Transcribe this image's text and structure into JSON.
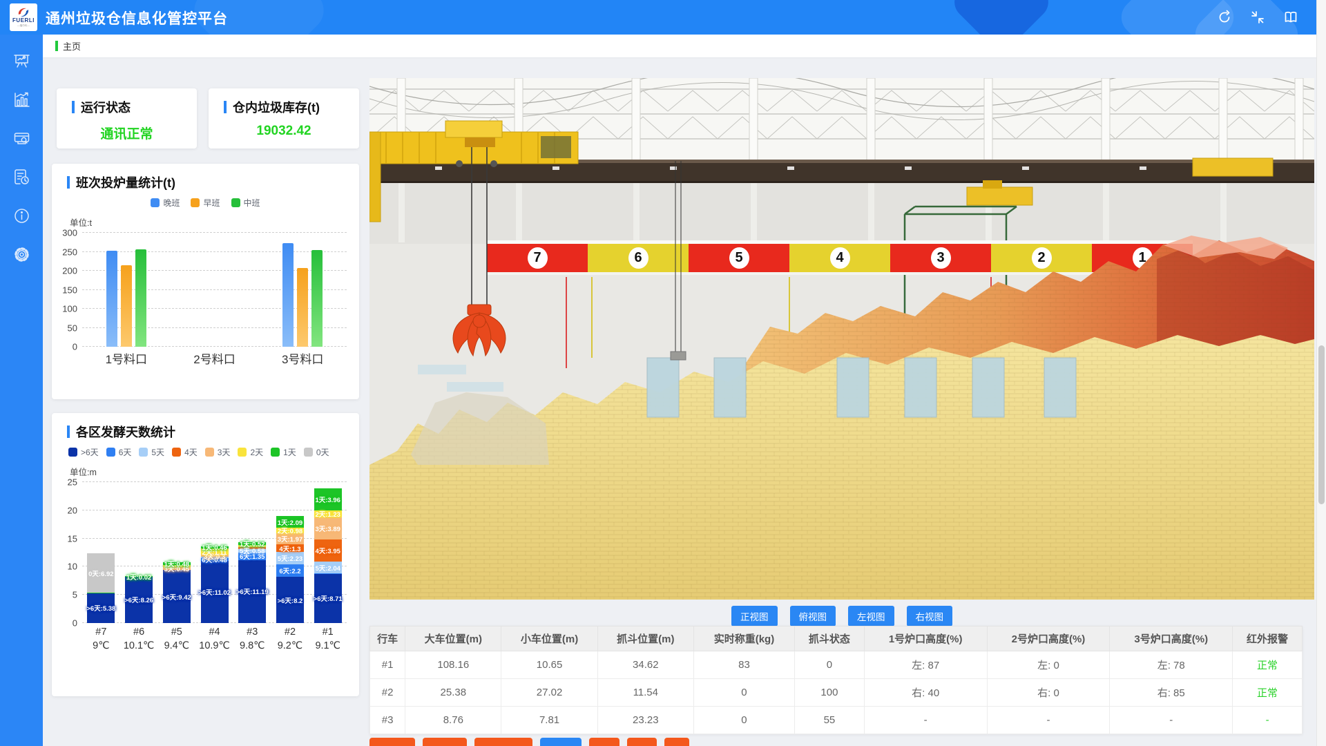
{
  "header": {
    "title": "通州垃圾仓信息化管控平台",
    "logo": {
      "brand": "FUERLI",
      "sub": "—福尔利—"
    }
  },
  "breadcrumb": {
    "label": "主页"
  },
  "cards": {
    "status": {
      "title": "运行状态",
      "value": "通讯正常"
    },
    "inventory": {
      "title": "仓内垃圾库存(t)",
      "value": "19032.42"
    }
  },
  "chart_data": [
    {
      "type": "bar",
      "title": "班次投炉量统计(t)",
      "unit": "单位:t",
      "categories": [
        "1号料口",
        "2号料口",
        "3号料口"
      ],
      "series": [
        {
          "name": "晚班",
          "color": "#3f8cf3",
          "color2": "#8abdf9",
          "values": [
            253,
            0,
            273
          ]
        },
        {
          "name": "早班",
          "color": "#f6a11c",
          "color2": "#fdc96d",
          "values": [
            215,
            0,
            207
          ]
        },
        {
          "name": "中班",
          "color": "#26bf3a",
          "color2": "#82e57f",
          "values": [
            256,
            0,
            255
          ]
        }
      ],
      "ylim": [
        0,
        300
      ],
      "yticks": [
        300,
        250,
        200,
        150,
        100,
        50,
        0
      ],
      "grid": "dashed",
      "legend_position": "top"
    },
    {
      "type": "stacked-bar",
      "title": "各区发酵天数统计",
      "unit": "单位:m",
      "ylim": [
        0,
        25
      ],
      "yticks": [
        25,
        20,
        15,
        10,
        5,
        0
      ],
      "grid": "dashed",
      "legend_position": "top",
      "legend": [
        {
          "label": ">6天",
          "color": "#0b33a8"
        },
        {
          "label": "6天",
          "color": "#2f7ff2"
        },
        {
          "label": "5天",
          "color": "#a6cef7"
        },
        {
          "label": "4天",
          "color": "#ee6410"
        },
        {
          "label": "3天",
          "color": "#f7b877"
        },
        {
          "label": "2天",
          "color": "#f9e33c"
        },
        {
          "label": "1天",
          "color": "#1dc427"
        },
        {
          "label": "0天",
          "color": "#c8c8c8"
        }
      ],
      "categories": [
        "#7",
        "#6",
        "#5",
        "#4",
        "#3",
        "#2",
        "#1"
      ],
      "temps": [
        "9℃",
        "10.1℃",
        "9.4℃",
        "10.9℃",
        "9.8℃",
        "9.2℃",
        "9.1℃"
      ],
      "stacks": [
        [
          {
            "label": ">6天",
            "value": 5.38
          },
          {
            "label": "1天",
            "value": 0.03,
            "nolabel": true
          },
          {
            "label": "0天",
            "value": 6.92
          }
        ],
        [
          {
            "label": ">6天",
            "value": 8.26
          },
          {
            "label": "1天",
            "value": 0.02
          }
        ],
        [
          {
            "label": ">6天",
            "value": 9.42
          },
          {
            "label": "3天",
            "value": 0.45
          },
          {
            "label": "2天",
            "value": 0.45,
            "nolabel": true
          },
          {
            "label": "1天",
            "value": 0.48
          }
        ],
        [
          {
            "label": ">6天",
            "value": 11.02
          },
          {
            "label": "6天",
            "value": 0.48
          },
          {
            "label": "5天",
            "value": 0.3,
            "nolabel": true
          },
          {
            "label": "3天",
            "value": 0.3
          },
          {
            "label": "2天",
            "value": 1.11
          },
          {
            "label": "1天",
            "value": 0.46
          }
        ],
        [
          {
            "label": ">6天",
            "value": 11.19
          },
          {
            "label": "6天",
            "value": 1.35
          },
          {
            "label": "5天",
            "value": 0.58
          },
          {
            "label": "4天",
            "value": 0.38,
            "nolabel": true
          },
          {
            "label": "2天",
            "value": 0.3,
            "nolabel": true
          },
          {
            "label": "1天",
            "value": 0.52
          }
        ],
        [
          {
            "label": ">6天",
            "value": 8.2
          },
          {
            "label": "6天",
            "value": 2.2
          },
          {
            "label": "5天",
            "value": 2.23
          },
          {
            "label": "4天",
            "value": 1.3
          },
          {
            "label": "3天",
            "value": 1.97
          },
          {
            "label": "2天",
            "value": 0.98
          },
          {
            "label": "1天",
            "value": 2.09
          }
        ],
        [
          {
            "label": ">6天",
            "value": 8.71
          },
          {
            "label": "6天",
            "value": 0.11,
            "nolabel": true
          },
          {
            "label": "5天",
            "value": 2.04
          },
          {
            "label": "4天",
            "value": 3.95
          },
          {
            "label": "3天",
            "value": 3.89
          },
          {
            "label": "2天",
            "value": 1.23
          },
          {
            "label": "1天",
            "value": 3.96
          }
        ]
      ]
    }
  ],
  "scene": {
    "zones": [
      "7",
      "6",
      "5",
      "4",
      "3",
      "2",
      "1"
    ],
    "view_buttons": [
      "正视图",
      "俯视图",
      "左视图",
      "右视图"
    ],
    "bottom_buttons": [
      "orange",
      "orange",
      "orange",
      "blue",
      "orange",
      "orange",
      "orange"
    ]
  },
  "table": {
    "columns": [
      "行车",
      "大车位置(m)",
      "小车位置(m)",
      "抓斗位置(m)",
      "实时称重(kg)",
      "抓斗状态",
      "1号炉口高度(%)",
      "2号炉口高度(%)",
      "3号炉口高度(%)",
      "红外报警"
    ],
    "rows": [
      [
        "#1",
        "108.16",
        "10.65",
        "34.62",
        "83",
        "0",
        "左: 87",
        "左: 0",
        "左: 78",
        "正常"
      ],
      [
        "#2",
        "25.38",
        "27.02",
        "11.54",
        "0",
        "100",
        "右: 40",
        "右: 0",
        "右: 85",
        "正常"
      ],
      [
        "#3",
        "8.76",
        "7.81",
        "23.23",
        "0",
        "55",
        "-",
        "-",
        "-",
        "-"
      ]
    ]
  }
}
